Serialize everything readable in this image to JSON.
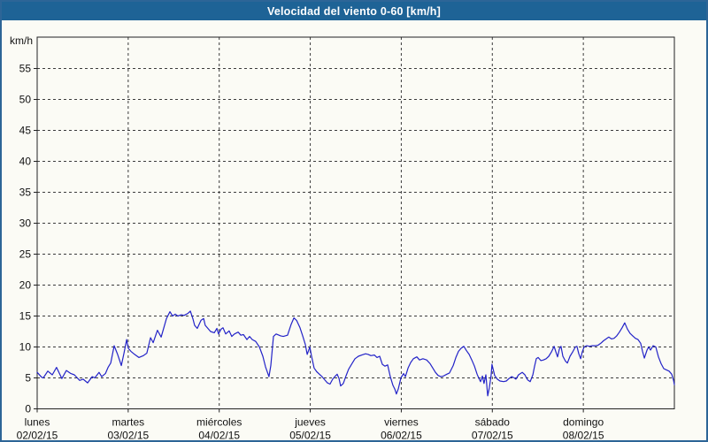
{
  "window": {
    "title": "Velocidad del viento 0-60 [km/h]"
  },
  "colors": {
    "title_bar_bg": "#1e6396",
    "title_text": "#ffffff",
    "window_bg": "#fbfbf5",
    "window_border": "#2d6597",
    "line": "#2323c8",
    "grid": "#3c3c3c",
    "axis_frame": "#222222",
    "label_text": "#111111"
  },
  "chart_data": {
    "type": "line",
    "title": "Velocidad del viento 0-60 [km/h]",
    "ylabel": "km/h",
    "ylim": [
      0,
      60
    ],
    "yticks": [
      0,
      5,
      10,
      15,
      20,
      25,
      30,
      35,
      40,
      45,
      50,
      55
    ],
    "grid": "dashed, both axes",
    "legend": "none",
    "x_unit": "hours since first day 00:00",
    "xlim": [
      0,
      168
    ],
    "x_day_ticks_hours": [
      0,
      24,
      48,
      72,
      96,
      120,
      144
    ],
    "days": [
      {
        "name": "lunes",
        "date": "02/02/15"
      },
      {
        "name": "martes",
        "date": "03/02/15"
      },
      {
        "name": "miércoles",
        "date": "04/02/15"
      },
      {
        "name": "jueves",
        "date": "05/02/15"
      },
      {
        "name": "viernes",
        "date": "06/02/15"
      },
      {
        "name": "sábado",
        "date": "07/02/15"
      },
      {
        "name": "domingo",
        "date": "08/02/15"
      }
    ],
    "series": [
      {
        "name": "Velocidad del viento",
        "color": "#2323c8",
        "points": [
          [
            0,
            5.9
          ],
          [
            1.2,
            5.1
          ],
          [
            1.6,
            5.0
          ],
          [
            2.8,
            6.1
          ],
          [
            4,
            5.5
          ],
          [
            5.1,
            6.7
          ],
          [
            6.5,
            4.9
          ],
          [
            7.7,
            6.2
          ],
          [
            8.9,
            5.7
          ],
          [
            9.8,
            5.5
          ],
          [
            11.2,
            4.6
          ],
          [
            12.1,
            4.8
          ],
          [
            13.3,
            4.2
          ],
          [
            14.5,
            5.2
          ],
          [
            15.2,
            5.0
          ],
          [
            16.3,
            5.9
          ],
          [
            17,
            5.2
          ],
          [
            18,
            5.7
          ],
          [
            18.7,
            6.7
          ],
          [
            19.4,
            7.4
          ],
          [
            20.3,
            10.2
          ],
          [
            21.2,
            8.8
          ],
          [
            22.2,
            7.0
          ],
          [
            22.9,
            9.0
          ],
          [
            23.6,
            11.2
          ],
          [
            24,
            9.8
          ],
          [
            24.7,
            9.3
          ],
          [
            25.7,
            8.8
          ],
          [
            26.8,
            8.3
          ],
          [
            28,
            8.6
          ],
          [
            28.9,
            9.0
          ],
          [
            29.9,
            11.5
          ],
          [
            30.6,
            10.7
          ],
          [
            31.7,
            12.7
          ],
          [
            32.7,
            11.6
          ],
          [
            33.4,
            13.1
          ],
          [
            34.1,
            14.6
          ],
          [
            35,
            15.7
          ],
          [
            35.7,
            15.0
          ],
          [
            36.4,
            15.3
          ],
          [
            37.1,
            15.0
          ],
          [
            38,
            15.2
          ],
          [
            38.7,
            15.1
          ],
          [
            39.7,
            15.4
          ],
          [
            40.4,
            15.8
          ],
          [
            41.1,
            14.5
          ],
          [
            41.5,
            13.5
          ],
          [
            42.2,
            13.0
          ],
          [
            43.2,
            14.3
          ],
          [
            43.9,
            14.6
          ],
          [
            44.3,
            13.5
          ],
          [
            45,
            13.0
          ],
          [
            45.7,
            12.5
          ],
          [
            46.7,
            12.3
          ],
          [
            47.4,
            13.0
          ],
          [
            47.8,
            12.1
          ],
          [
            48.5,
            12.9
          ],
          [
            49,
            13.1
          ],
          [
            49.7,
            12.1
          ],
          [
            50.6,
            12.6
          ],
          [
            51.3,
            11.7
          ],
          [
            52,
            12.1
          ],
          [
            53,
            12.4
          ],
          [
            53.7,
            11.9
          ],
          [
            54.4,
            12.0
          ],
          [
            55.3,
            11.2
          ],
          [
            56,
            11.7
          ],
          [
            56.7,
            11.2
          ],
          [
            57.6,
            10.9
          ],
          [
            58.6,
            10.0
          ],
          [
            59.5,
            8.5
          ],
          [
            60.2,
            6.8
          ],
          [
            61.1,
            5.2
          ],
          [
            61.6,
            7.0
          ],
          [
            62.3,
            11.7
          ],
          [
            63,
            12.1
          ],
          [
            64.2,
            11.8
          ],
          [
            64.9,
            11.7
          ],
          [
            66,
            11.9
          ],
          [
            67,
            13.7
          ],
          [
            67.7,
            14.7
          ],
          [
            68.4,
            14.3
          ],
          [
            69.3,
            13.1
          ],
          [
            70,
            11.8
          ],
          [
            70.7,
            10.4
          ],
          [
            71.2,
            8.8
          ],
          [
            71.9,
            10.0
          ],
          [
            72.3,
            8.6
          ],
          [
            73,
            6.6
          ],
          [
            73.7,
            6.0
          ],
          [
            74.4,
            5.6
          ],
          [
            75.1,
            5.2
          ],
          [
            75.8,
            4.7
          ],
          [
            76.5,
            4.2
          ],
          [
            77.2,
            4.0
          ],
          [
            77.9,
            4.8
          ],
          [
            78.6,
            5.3
          ],
          [
            79.1,
            5.6
          ],
          [
            79.6,
            4.9
          ],
          [
            80,
            3.7
          ],
          [
            80.7,
            4.1
          ],
          [
            81.4,
            5.3
          ],
          [
            82.1,
            6.4
          ],
          [
            83.1,
            7.4
          ],
          [
            83.8,
            8.1
          ],
          [
            84.7,
            8.5
          ],
          [
            85.6,
            8.7
          ],
          [
            86.6,
            8.9
          ],
          [
            87.3,
            8.8
          ],
          [
            88,
            8.6
          ],
          [
            88.9,
            8.7
          ],
          [
            89.6,
            8.3
          ],
          [
            90.3,
            8.5
          ],
          [
            91,
            7.2
          ],
          [
            91.7,
            6.9
          ],
          [
            92.4,
            7.1
          ],
          [
            93.1,
            5.2
          ],
          [
            93.8,
            3.8
          ],
          [
            94.3,
            3.2
          ],
          [
            94.7,
            2.4
          ],
          [
            95.2,
            3.2
          ],
          [
            95.9,
            5.0
          ],
          [
            96.6,
            5.7
          ],
          [
            97.1,
            5.2
          ],
          [
            97.8,
            6.6
          ],
          [
            98.5,
            7.5
          ],
          [
            99.2,
            8.1
          ],
          [
            100.1,
            8.4
          ],
          [
            100.8,
            7.9
          ],
          [
            101.7,
            8.1
          ],
          [
            102.7,
            7.9
          ],
          [
            103.6,
            7.3
          ],
          [
            104.3,
            6.6
          ],
          [
            105,
            5.9
          ],
          [
            105.7,
            5.4
          ],
          [
            106.4,
            5.2
          ],
          [
            107.1,
            5.3
          ],
          [
            108,
            5.6
          ],
          [
            108.7,
            5.8
          ],
          [
            109.7,
            7.0
          ],
          [
            110.4,
            8.3
          ],
          [
            111.1,
            9.3
          ],
          [
            111.8,
            9.8
          ],
          [
            112.5,
            10.1
          ],
          [
            113.2,
            9.4
          ],
          [
            113.9,
            8.8
          ],
          [
            114.6,
            7.9
          ],
          [
            115.3,
            6.9
          ],
          [
            116,
            5.6
          ],
          [
            116.4,
            5.0
          ],
          [
            116.9,
            4.4
          ],
          [
            117.4,
            5.3
          ],
          [
            117.8,
            4.1
          ],
          [
            118.3,
            5.5
          ],
          [
            118.8,
            2.1
          ],
          [
            119.2,
            3.4
          ],
          [
            119.7,
            5.5
          ],
          [
            119.9,
            7.2
          ],
          [
            120.6,
            5.4
          ],
          [
            121.3,
            4.8
          ],
          [
            122,
            4.5
          ],
          [
            123,
            4.4
          ],
          [
            123.7,
            4.5
          ],
          [
            124.4,
            4.9
          ],
          [
            125.1,
            5.2
          ],
          [
            125.8,
            5.0
          ],
          [
            126.2,
            4.8
          ],
          [
            126.9,
            5.5
          ],
          [
            127.9,
            5.9
          ],
          [
            128.6,
            5.5
          ],
          [
            129.3,
            4.7
          ],
          [
            130,
            4.4
          ],
          [
            130.7,
            5.5
          ],
          [
            131.1,
            6.8
          ],
          [
            131.6,
            8.1
          ],
          [
            132.1,
            8.3
          ],
          [
            132.8,
            7.8
          ],
          [
            133.5,
            7.9
          ],
          [
            134.2,
            8.1
          ],
          [
            134.9,
            8.5
          ],
          [
            135.6,
            9.2
          ],
          [
            136.3,
            10.1
          ],
          [
            136.7,
            9.3
          ],
          [
            137.2,
            8.4
          ],
          [
            137.7,
            9.7
          ],
          [
            138.1,
            10.1
          ],
          [
            138.6,
            8.5
          ],
          [
            139.3,
            7.7
          ],
          [
            139.8,
            7.4
          ],
          [
            140.5,
            8.5
          ],
          [
            141.2,
            9.2
          ],
          [
            141.9,
            10.0
          ],
          [
            142.3,
            10.1
          ],
          [
            142.8,
            8.9
          ],
          [
            143.3,
            8.1
          ],
          [
            143.7,
            9.2
          ],
          [
            144.2,
            10.0
          ],
          [
            144.9,
            10.2
          ],
          [
            145.6,
            10.1
          ],
          [
            146.3,
            10.2
          ],
          [
            147.2,
            10.2
          ],
          [
            147.9,
            10.3
          ],
          [
            148.6,
            10.6
          ],
          [
            149.3,
            11.0
          ],
          [
            150,
            11.3
          ],
          [
            150.7,
            11.6
          ],
          [
            151.4,
            11.3
          ],
          [
            152.1,
            11.4
          ],
          [
            152.8,
            11.8
          ],
          [
            153.5,
            12.4
          ],
          [
            154.2,
            13.1
          ],
          [
            154.9,
            13.9
          ],
          [
            155.6,
            12.9
          ],
          [
            156.3,
            12.2
          ],
          [
            157,
            11.8
          ],
          [
            157.7,
            11.4
          ],
          [
            158.4,
            11.2
          ],
          [
            159.1,
            10.6
          ],
          [
            159.6,
            9.3
          ],
          [
            160.1,
            8.2
          ],
          [
            160.8,
            9.5
          ],
          [
            161.2,
            10.0
          ],
          [
            161.7,
            9.5
          ],
          [
            162.4,
            10.2
          ],
          [
            163.1,
            10.0
          ],
          [
            163.8,
            8.4
          ],
          [
            164.5,
            7.3
          ],
          [
            165.2,
            6.5
          ],
          [
            165.9,
            6.3
          ],
          [
            166.6,
            6.1
          ],
          [
            167.3,
            5.6
          ],
          [
            167.8,
            4.6
          ],
          [
            168,
            3.9
          ]
        ]
      }
    ]
  }
}
